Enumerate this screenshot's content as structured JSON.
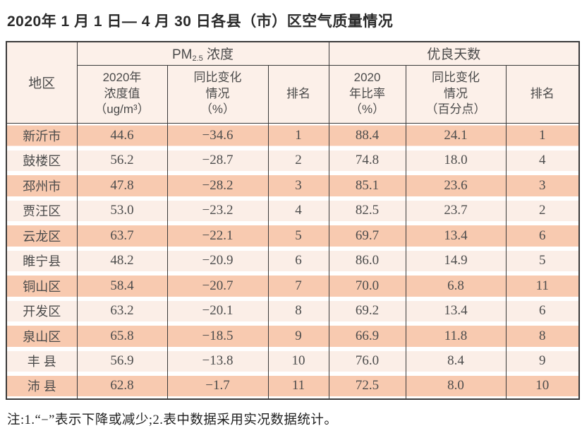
{
  "page": {
    "title": "2020年 1 月 1 日— 4 月 30 日各县（市）区空气质量情况"
  },
  "table": {
    "region_header": "地区",
    "pm_group": {
      "prefix": "PM",
      "sub": "2.5",
      "suffix": " 浓度"
    },
    "days_group": "优良天数",
    "pm_value_header": "2020年\n浓度值\n（ug/m³）",
    "pm_change_header": "同比变化\n情况\n（%）",
    "pm_rank_header": "排名",
    "rate_header": "2020\n年比率\n（%）",
    "rate_change_header": "同比变化\n情况\n（百分点）",
    "rate_rank_header": "排名",
    "rows": [
      {
        "region": "新沂市",
        "pm_value": "44.6",
        "pm_change": "−34.6",
        "pm_rank": "1",
        "rate": "88.4",
        "rate_change": "24.1",
        "rate_rank": "1"
      },
      {
        "region": "鼓楼区",
        "pm_value": "56.2",
        "pm_change": "−28.7",
        "pm_rank": "2",
        "rate": "74.8",
        "rate_change": "18.0",
        "rate_rank": "4"
      },
      {
        "region": "邳州市",
        "pm_value": "47.8",
        "pm_change": "−28.2",
        "pm_rank": "3",
        "rate": "85.1",
        "rate_change": "23.6",
        "rate_rank": "3"
      },
      {
        "region": "贾汪区",
        "pm_value": "53.0",
        "pm_change": "−23.2",
        "pm_rank": "4",
        "rate": "82.5",
        "rate_change": "23.7",
        "rate_rank": "2"
      },
      {
        "region": "云龙区",
        "pm_value": "63.7",
        "pm_change": "−22.1",
        "pm_rank": "5",
        "rate": "69.7",
        "rate_change": "13.4",
        "rate_rank": "6"
      },
      {
        "region": "睢宁县",
        "pm_value": "48.2",
        "pm_change": "−20.9",
        "pm_rank": "6",
        "rate": "86.0",
        "rate_change": "14.9",
        "rate_rank": "5"
      },
      {
        "region": "铜山区",
        "pm_value": "58.4",
        "pm_change": "−20.7",
        "pm_rank": "7",
        "rate": "70.0",
        "rate_change": "6.8",
        "rate_rank": "11"
      },
      {
        "region": "开发区",
        "pm_value": "63.2",
        "pm_change": "−20.1",
        "pm_rank": "8",
        "rate": "69.2",
        "rate_change": "13.4",
        "rate_rank": "6"
      },
      {
        "region": "泉山区",
        "pm_value": "65.8",
        "pm_change": "−18.5",
        "pm_rank": "9",
        "rate": "66.9",
        "rate_change": "11.8",
        "rate_rank": "8"
      },
      {
        "region": "丰 县",
        "pm_value": "56.9",
        "pm_change": "−13.8",
        "pm_rank": "10",
        "rate": "76.0",
        "rate_change": "8.4",
        "rate_rank": "9"
      },
      {
        "region": "沛 县",
        "pm_value": "62.8",
        "pm_change": "−1.7",
        "pm_rank": "11",
        "rate": "72.5",
        "rate_change": "8.0",
        "rate_rank": "10"
      }
    ]
  },
  "note": "注:1.“−”表示下降或减少;2.表中数据采用实况数据统计。",
  "colors": {
    "row_odd_band": "#f8cab0",
    "row_even_band": "#fbeee7",
    "header_bg": "#fcf0e9",
    "border": "#3a3a3a"
  }
}
